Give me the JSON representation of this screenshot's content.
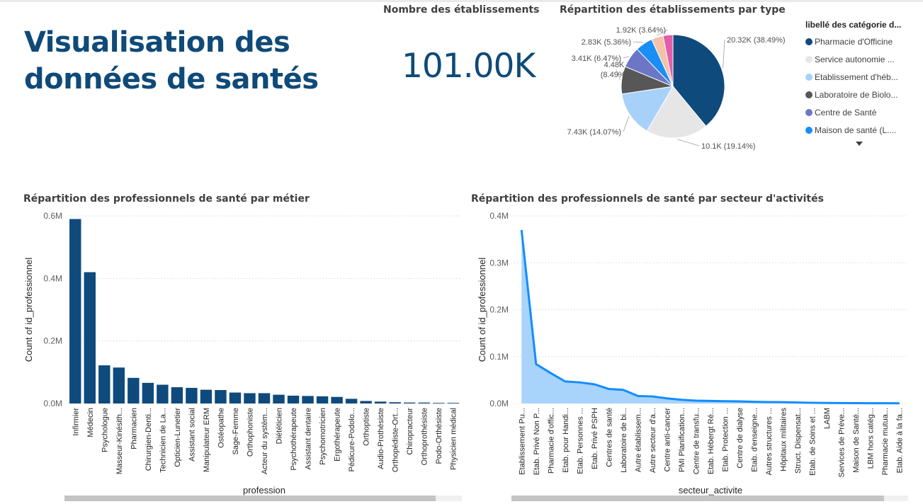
{
  "title_line1": "Visualisation des",
  "title_line2": "données de santés",
  "card": {
    "title": "Nombre des établissements",
    "value": "101.00K"
  },
  "chart_data": [
    {
      "type": "pie",
      "title": "Répartition des établissements par type",
      "legend_title": "libellé des catégorie d...",
      "legend_items": [
        "Pharmacie d'Officine",
        "Service autonomie ...",
        "Etablissement d'héb...",
        "Laboratoire de Biolo...",
        "Centre de Santé",
        "Maison de santé (L...."
      ],
      "slices": [
        {
          "value": 20.32,
          "percent": 38.49,
          "color": "#0f4a7c",
          "label": "20.32K (38.49%)"
        },
        {
          "value": 10.1,
          "percent": 19.14,
          "color": "#e6e6e6",
          "label": "10.1K (19.14%)"
        },
        {
          "value": 7.43,
          "percent": 14.07,
          "color": "#a8d1fa",
          "label": "7.43K (14.07%)"
        },
        {
          "value": 4.48,
          "percent": 8.49,
          "color": "#575757",
          "label": "4.48K (8.49%)"
        },
        {
          "value": 3.41,
          "percent": 6.47,
          "color": "#6b77c6",
          "label": "3.41K (6.47%)"
        },
        {
          "value": 2.83,
          "percent": 5.36,
          "color": "#1a8ef5",
          "label": "2.83K (5.36%)"
        },
        {
          "value": 1.92,
          "percent": 3.64,
          "color": "#f4c1aa",
          "label": "1.92K (3.64%)"
        },
        {
          "value": 1.61,
          "percent": 3.04,
          "color": "#e35ea9",
          "label": ""
        }
      ]
    },
    {
      "type": "bar",
      "title": "Répartition des professionnels de santé par métier",
      "xlabel": "profession",
      "ylabel": "Count of id_professionnel",
      "ylim": [
        0,
        0.6
      ],
      "yticks": [
        "0.0M",
        "0.2M",
        "0.4M",
        "0.6M"
      ],
      "color": "#0f4a7c",
      "categories": [
        "Infirmier",
        "Médecin",
        "Psychologue",
        "Masseur-Kinésith...",
        "Pharmacien",
        "Chirurgien-Denti...",
        "Technicien de La...",
        "Opticien-Lunetier",
        "Assistant social",
        "Manipulateur ERM",
        "Ostéopathe",
        "Sage-Femme",
        "Orthophoniste",
        "Acteur du systèm...",
        "Diététicien",
        "Psychothérapeute",
        "Assistant dentaire",
        "Psychomotricien",
        "Ergothérapeute",
        "Pédicure-Podolo...",
        "Orthoptiste",
        "Audio-Prothésiste",
        "Orthopédiste-Ort...",
        "Chiropracteur",
        "Orthoprothésiste",
        "Podo-Orthésiste",
        "Physicien médical"
      ],
      "values": [
        0.59,
        0.42,
        0.122,
        0.115,
        0.082,
        0.066,
        0.06,
        0.052,
        0.05,
        0.044,
        0.043,
        0.035,
        0.033,
        0.033,
        0.028,
        0.025,
        0.024,
        0.023,
        0.021,
        0.015,
        0.008,
        0.006,
        0.004,
        0.003,
        0.003,
        0.002,
        0.002
      ]
    },
    {
      "type": "area",
      "title": "Répartition des professionnels de santé par secteur d'activités",
      "xlabel": "secteur_activite",
      "ylabel": "Count of id_professionnel",
      "ylim": [
        0,
        0.4
      ],
      "yticks": [
        "0.0M",
        "0.1M",
        "0.2M",
        "0.3M",
        "0.4M"
      ],
      "line_color": "#118dff",
      "fill_color": "#a8d3fb",
      "categories": [
        "Etablissement Pu...",
        "Etab. Privé Non P...",
        "Pharmacie d'offic...",
        "Etab. pour Handi...",
        "Etab. Personnes ...",
        "Etab. Privé PSPH",
        "Centres de santé",
        "Laboratoire de bi...",
        "Autre établissem...",
        "Autre secteur d'a...",
        "Centre anti-cancer",
        "PMI Planification...",
        "Centre de transfu...",
        "Etab. Hébergt Ré...",
        "Etab. Protection ...",
        "Centre de dialyse",
        "Etab. d'enseigne...",
        "Autres structures ...",
        "Hôpitaux militaires",
        "Struct. Dispensat...",
        "Etab. de Soins et ...",
        "LABM",
        "Services de Préve...",
        "Maison de Santé...",
        "LBM hors catég...",
        "Pharmacie mutua...",
        "Etab. Aide à la fa..."
      ],
      "values": [
        0.37,
        0.084,
        0.065,
        0.047,
        0.045,
        0.041,
        0.031,
        0.029,
        0.016,
        0.015,
        0.011,
        0.008,
        0.006,
        0.0055,
        0.005,
        0.0045,
        0.0035,
        0.003,
        0.0028,
        0.002,
        0.0015,
        0.0012,
        0.001,
        0.0008,
        0.0006,
        0.0005,
        0.0004
      ]
    }
  ]
}
